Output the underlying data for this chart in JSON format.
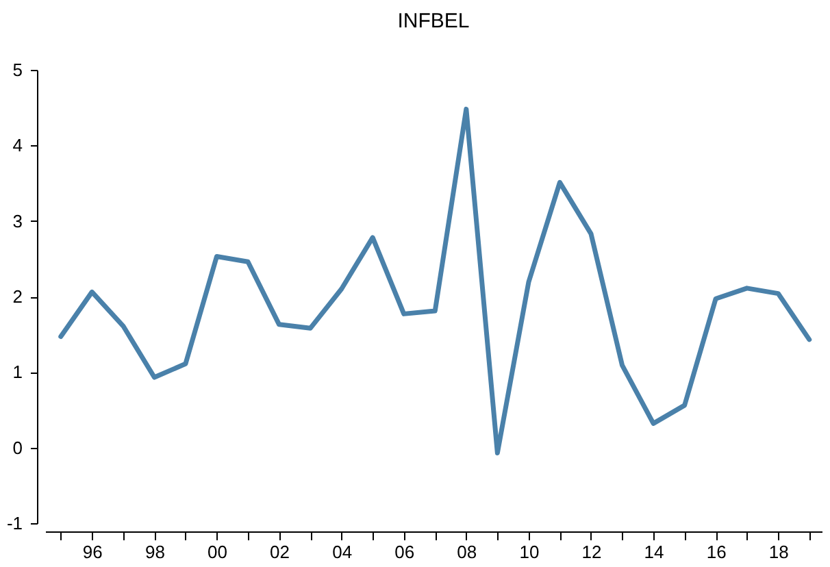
{
  "chart_data": {
    "type": "line",
    "title": "INFBEL",
    "x": [
      1995,
      1996,
      1997,
      1998,
      1999,
      2000,
      2001,
      2002,
      2003,
      2004,
      2005,
      2006,
      2007,
      2008,
      2009,
      2010,
      2011,
      2012,
      2013,
      2014,
      2015,
      2016,
      2017,
      2018,
      2019
    ],
    "series": [
      {
        "color": "#4a81aa",
        "values": [
          1.47,
          2.06,
          1.61,
          0.93,
          1.11,
          2.53,
          2.46,
          1.63,
          1.58,
          2.1,
          2.78,
          1.77,
          1.81,
          4.48,
          -0.07,
          2.19,
          3.51,
          2.83,
          1.09,
          0.32,
          0.56,
          1.97,
          2.11,
          2.04,
          1.43
        ]
      }
    ],
    "xlim": [
      1994.5,
      2019.4
    ],
    "xticks": [
      {
        "value": 1995,
        "label": null
      },
      {
        "value": 1996,
        "label": "96"
      },
      {
        "value": 1997,
        "label": null
      },
      {
        "value": 1998,
        "label": "98"
      },
      {
        "value": 1999,
        "label": null
      },
      {
        "value": 2000,
        "label": "00"
      },
      {
        "value": 2001,
        "label": null
      },
      {
        "value": 2002,
        "label": "02"
      },
      {
        "value": 2003,
        "label": null
      },
      {
        "value": 2004,
        "label": "04"
      },
      {
        "value": 2005,
        "label": null
      },
      {
        "value": 2006,
        "label": "06"
      },
      {
        "value": 2007,
        "label": null
      },
      {
        "value": 2008,
        "label": "08"
      },
      {
        "value": 2009,
        "label": null
      },
      {
        "value": 2010,
        "label": "10"
      },
      {
        "value": 2011,
        "label": null
      },
      {
        "value": 2012,
        "label": "12"
      },
      {
        "value": 2013,
        "label": null
      },
      {
        "value": 2014,
        "label": "14"
      },
      {
        "value": 2015,
        "label": null
      },
      {
        "value": 2016,
        "label": "16"
      },
      {
        "value": 2017,
        "label": null
      },
      {
        "value": 2018,
        "label": "18"
      },
      {
        "value": 2019,
        "label": null
      }
    ],
    "ylim": [
      -1,
      5
    ],
    "yticks": [
      -1,
      0,
      1,
      2,
      3,
      4,
      5
    ],
    "grid": false,
    "marker": "none",
    "line_style": "solid"
  }
}
